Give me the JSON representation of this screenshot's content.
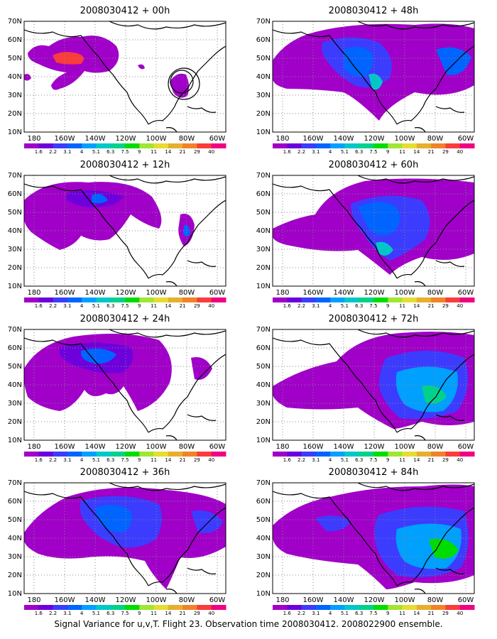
{
  "panels": [
    {
      "title": "2008030412 + 00h",
      "lead": "00h"
    },
    {
      "title": "2008030412 + 48h",
      "lead": "48h"
    },
    {
      "title": "2008030412 + 12h",
      "lead": "12h"
    },
    {
      "title": "2008030412 + 60h",
      "lead": "60h"
    },
    {
      "title": "2008030412 + 24h",
      "lead": "24h"
    },
    {
      "title": "2008030412 + 72h",
      "lead": "72h"
    },
    {
      "title": "2008030412 + 36h",
      "lead": "36h"
    },
    {
      "title": "2008030412 + 84h",
      "lead": "84h"
    }
  ],
  "lat_labels": [
    "70N",
    "60N",
    "50N",
    "40N",
    "30N",
    "20N",
    "10N"
  ],
  "lon_labels": [
    "180",
    "160W",
    "140W",
    "120W",
    "100W",
    "80W",
    "60W"
  ],
  "colorbar": {
    "levels": [
      "1.6",
      "2.2",
      "3.1",
      "4",
      "5.1",
      "6.3",
      "7.5",
      "9",
      "11",
      "14",
      "21",
      "29",
      "40"
    ],
    "colors": [
      "#a000c8",
      "#6e00dc",
      "#3c3cff",
      "#0064ff",
      "#00a0ff",
      "#00c8c8",
      "#00d28c",
      "#00dc00",
      "#a0e632",
      "#e6dc32",
      "#e6af2d",
      "#f08228",
      "#fa3c3c",
      "#f00082"
    ]
  },
  "caption": "Signal Variance for u,v,T. Flight 23. Observation time 2008030412. 2008022900 ensemble."
}
